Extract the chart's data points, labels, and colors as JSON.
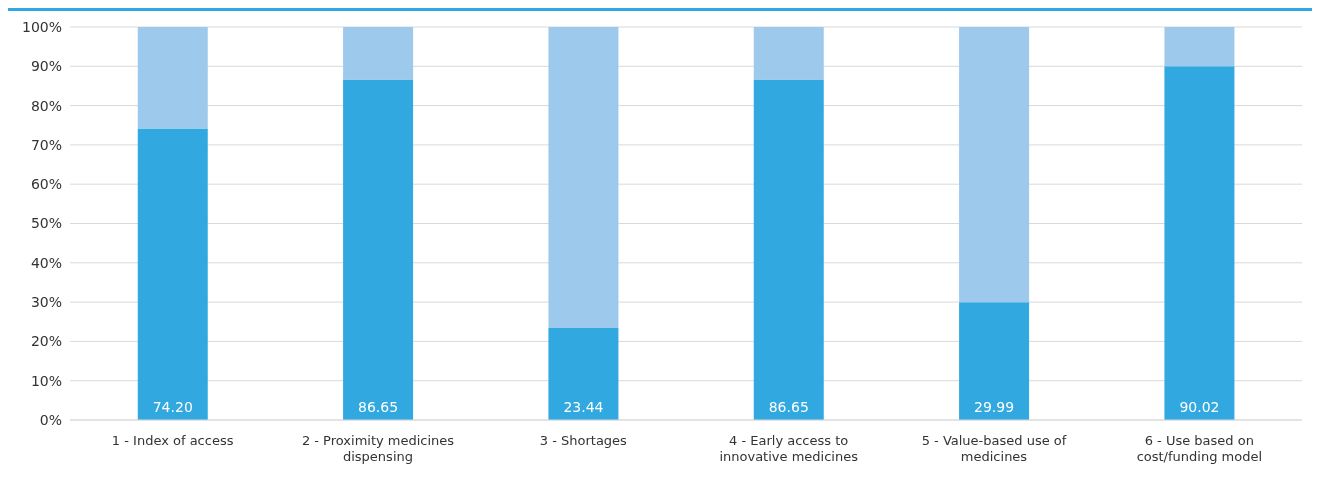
{
  "chart_data": {
    "type": "bar",
    "stacked": true,
    "categories": [
      "1 - Index of access",
      "2 - Proximity medicines dispensing",
      "3 - Shortages",
      "4 - Early access to innovative medicines",
      "5 - Value-based use of medicines",
      "6 - Use based on cost/funding model"
    ],
    "series": [
      {
        "color": "#31a8e0",
        "values": [
          74.2,
          86.65,
          23.44,
          86.65,
          29.99,
          90.02
        ],
        "value_labels": [
          "74.20",
          "86.65",
          "23.44",
          "86.65",
          "29.99",
          "90.02"
        ]
      },
      {
        "color": "#9dc9ec",
        "values": [
          25.8,
          13.35,
          76.56,
          13.35,
          70.01,
          9.98
        ]
      }
    ],
    "ylim": [
      0,
      100
    ],
    "yticks": [
      {
        "value": 0,
        "label": "0%"
      },
      {
        "value": 10,
        "label": "10%"
      },
      {
        "value": 20,
        "label": "20%"
      },
      {
        "value": 30,
        "label": "30%"
      },
      {
        "value": 40,
        "label": "40%"
      },
      {
        "value": 50,
        "label": "50%"
      },
      {
        "value": 60,
        "label": "60%"
      },
      {
        "value": 70,
        "label": "70%"
      },
      {
        "value": 80,
        "label": "80%"
      },
      {
        "value": 90,
        "label": "90%"
      },
      {
        "value": 100,
        "label": "100%"
      }
    ],
    "grid": "y",
    "legend": false
  }
}
